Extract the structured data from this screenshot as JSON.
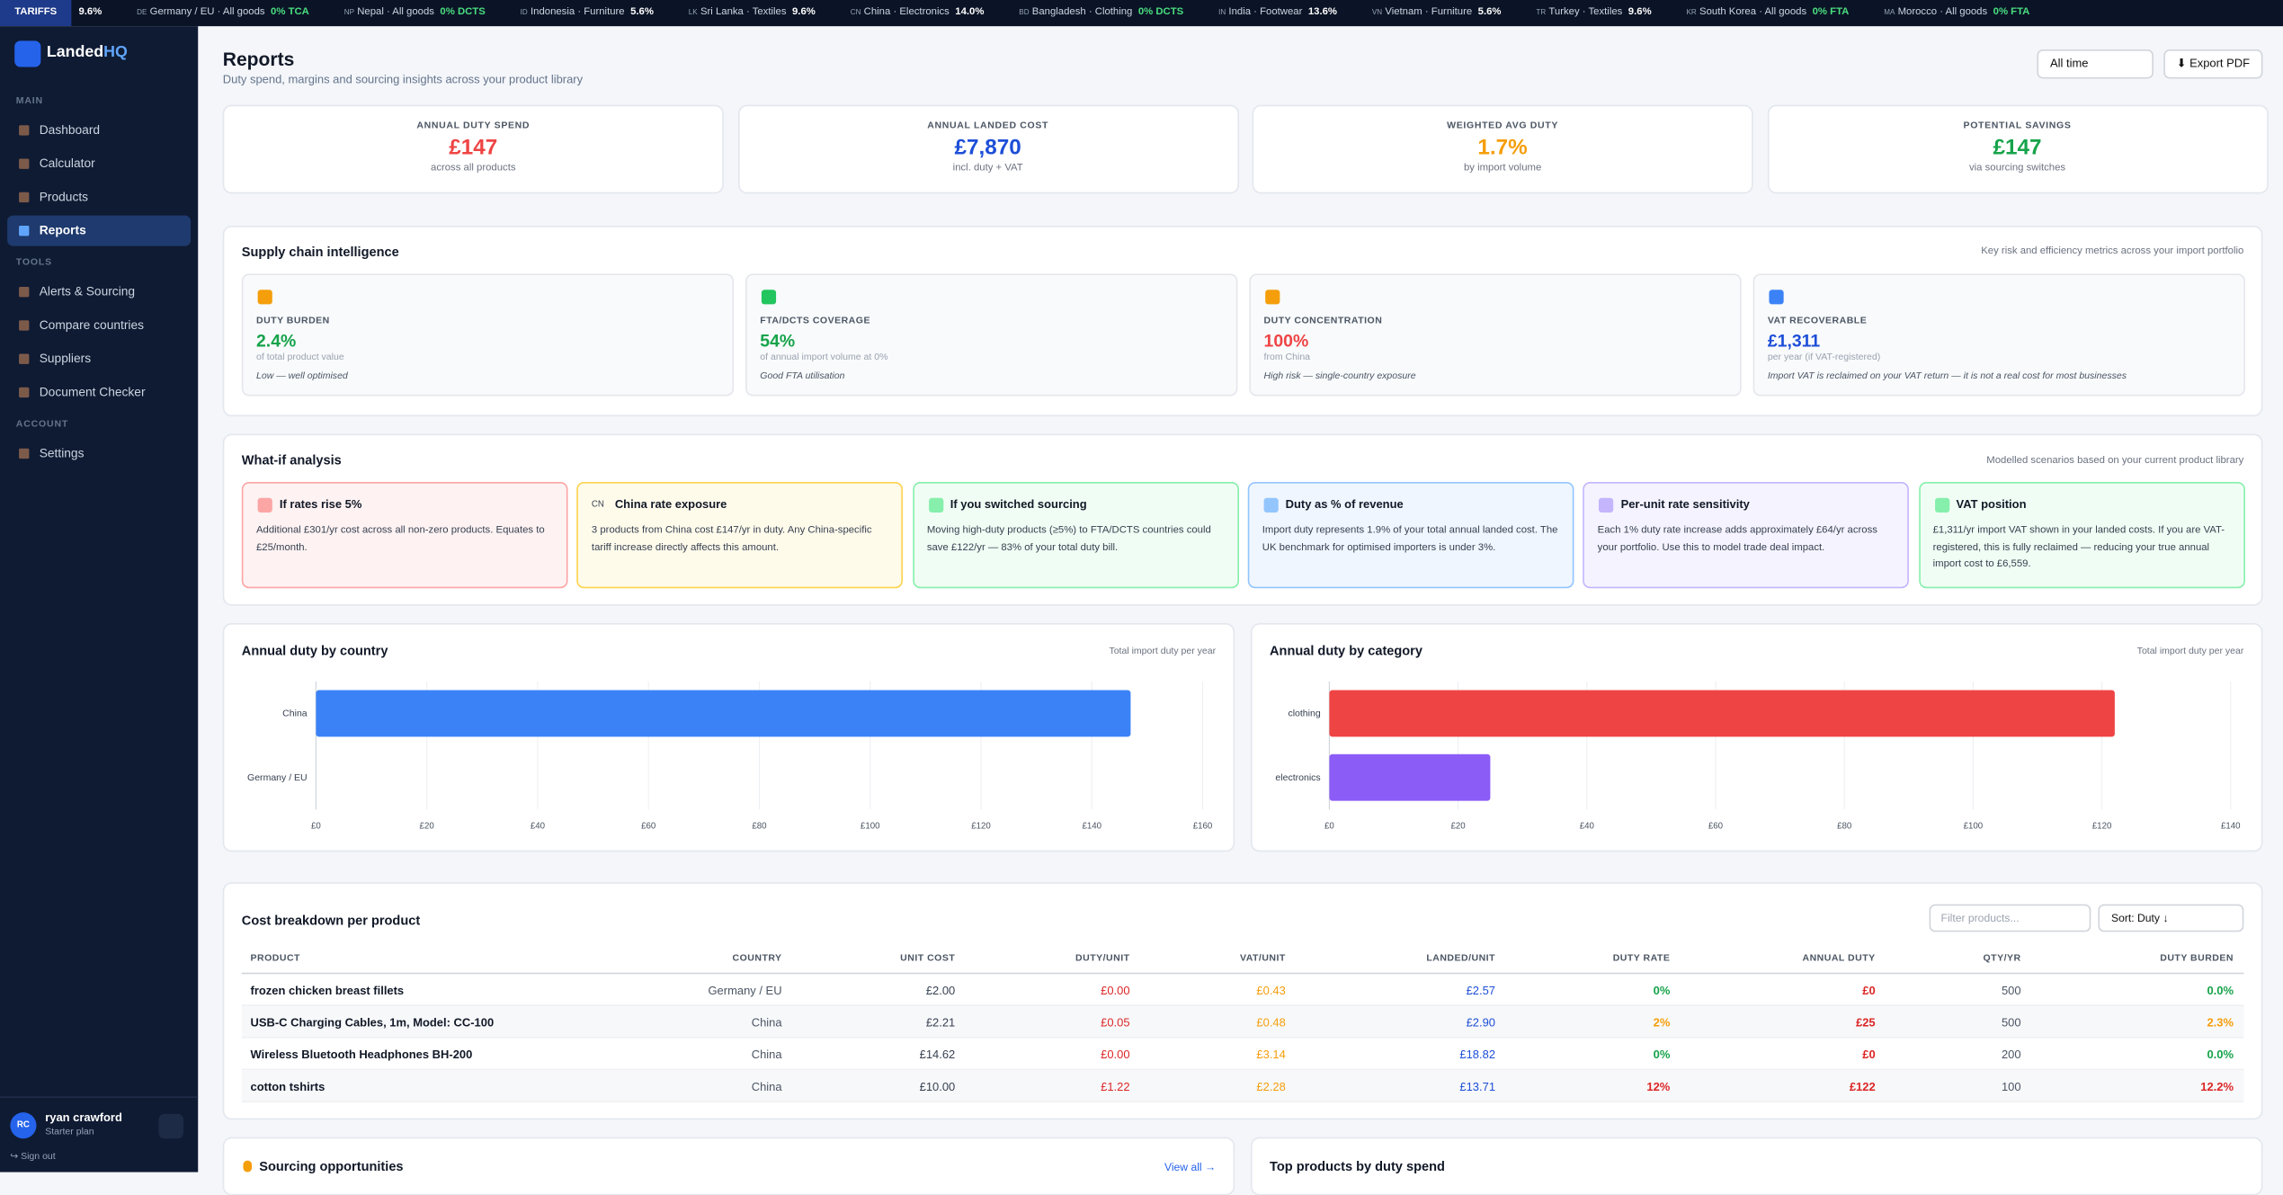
{
  "ticker": {
    "label": "TARIFFS",
    "items": [
      {
        "rate": "9.6%",
        "color": "#ffffff"
      },
      {
        "flag": "DE",
        "name": "Germany / EU · All goods",
        "rate": "0% TCA",
        "color": "#4ade80"
      },
      {
        "flag": "NP",
        "name": "Nepal · All goods",
        "rate": "0% DCTS",
        "color": "#4ade80"
      },
      {
        "flag": "ID",
        "name": "Indonesia · Furniture",
        "rate": "5.6%",
        "color": "#ffffff"
      },
      {
        "flag": "LK",
        "name": "Sri Lanka · Textiles",
        "rate": "9.6%",
        "color": "#ffffff"
      },
      {
        "flag": "CN",
        "name": "China · Electronics",
        "rate": "14.0%",
        "color": "#ffffff"
      },
      {
        "flag": "BD",
        "name": "Bangladesh · Clothing",
        "rate": "0% DCTS",
        "color": "#4ade80"
      },
      {
        "flag": "IN",
        "name": "India · Footwear",
        "rate": "13.6%",
        "color": "#ffffff"
      },
      {
        "flag": "VN",
        "name": "Vietnam · Furniture",
        "rate": "5.6%",
        "color": "#ffffff"
      },
      {
        "flag": "TR",
        "name": "Turkey · Textiles",
        "rate": "9.6%",
        "color": "#ffffff"
      },
      {
        "flag": "KR",
        "name": "South Korea · All goods",
        "rate": "0% FTA",
        "color": "#4ade80"
      },
      {
        "flag": "MA",
        "name": "Morocco · All goods",
        "rate": "0% FTA",
        "color": "#4ade80"
      }
    ]
  },
  "sidebar": {
    "logo": [
      "Landed",
      "HQ"
    ],
    "sections": [
      {
        "title": "MAIN",
        "items": [
          "Dashboard",
          "Calculator",
          "Products",
          "Reports"
        ]
      },
      {
        "title": "TOOLS",
        "items": [
          "Alerts & Sourcing",
          "Compare countries",
          "Suppliers",
          "Document Checker"
        ]
      },
      {
        "title": "ACCOUNT",
        "items": [
          "Settings"
        ]
      }
    ],
    "active": "Reports",
    "user": {
      "initials": "RC",
      "name": "ryan crawford",
      "plan": "Starter plan"
    },
    "signout": "↪ Sign out"
  },
  "header": {
    "title": "Reports",
    "subtitle": "Duty spend, margins and sourcing insights across your product library",
    "period": "All time",
    "export": "⬇ Export PDF"
  },
  "kpis": [
    {
      "label": "ANNUAL DUTY SPEND",
      "value": "£147",
      "note": "across all products",
      "color": "#ef4444"
    },
    {
      "label": "ANNUAL LANDED COST",
      "value": "£7,870",
      "note": "incl. duty + VAT",
      "color": "#1d4ed8"
    },
    {
      "label": "WEIGHTED AVG DUTY",
      "value": "1.7%",
      "note": "by import volume",
      "color": "#f59e0b"
    },
    {
      "label": "POTENTIAL SAVINGS",
      "value": "£147",
      "note": "via sourcing switches",
      "color": "#16a34a"
    }
  ],
  "intel": {
    "title": "Supply chain intelligence",
    "note": "Key risk and efficiency metrics across your import portfolio",
    "cards": [
      {
        "label": "DUTY BURDEN",
        "value": "2.4%",
        "sub": "of total product value",
        "comment": "Low — well optimised",
        "color": "#16a34a",
        "icon": "#f59e0b"
      },
      {
        "label": "FTA/DCTS COVERAGE",
        "value": "54%",
        "sub": "of annual import volume at 0%",
        "comment": "Good FTA utilisation",
        "color": "#16a34a",
        "icon": "#22c55e"
      },
      {
        "label": "DUTY CONCENTRATION",
        "value": "100%",
        "sub": "from China",
        "comment": "High risk — single-country exposure",
        "color": "#ef4444",
        "icon": "#f59e0b"
      },
      {
        "label": "VAT RECOVERABLE",
        "value": "£1,311",
        "sub": "per year (if VAT-registered)",
        "comment": "Import VAT is reclaimed on your VAT return — it is not a real cost for most businesses",
        "color": "#1d4ed8",
        "icon": "#3b82f6"
      }
    ]
  },
  "whatif": {
    "title": "What-if analysis",
    "note": "Modelled scenarios based on your current product library",
    "cards": [
      {
        "title": "If rates rise 5%",
        "text": "Additional £301/yr cost across all non-zero products. Equates to £25/month.",
        "bg": "#fef2f2",
        "border": "#fca5a5"
      },
      {
        "icon": "CN",
        "title": "China rate exposure",
        "text": "3 products from China cost £147/yr in duty. Any China-specific tariff increase directly affects this amount.",
        "bg": "#fffbeb",
        "border": "#fcd34d"
      },
      {
        "title": "If you switched sourcing",
        "text": "Moving high-duty products (≥5%) to FTA/DCTS countries could save £122/yr — 83% of your total duty bill.",
        "bg": "#f0fdf4",
        "border": "#86efac"
      },
      {
        "title": "Duty as % of revenue",
        "text": "Import duty represents 1.9% of your total annual landed cost. The UK benchmark for optimised importers is under 3%.",
        "bg": "#eff6ff",
        "border": "#93c5fd"
      },
      {
        "title": "Per-unit rate sensitivity",
        "text": "Each 1% duty rate increase adds approximately £64/yr across your portfolio. Use this to model trade deal impact.",
        "bg": "#f5f3ff",
        "border": "#c4b5fd"
      },
      {
        "title": "VAT position",
        "text": "£1,311/yr import VAT shown in your landed costs. If you are VAT-registered, this is fully reclaimed — reducing your true annual import cost to £6,559.",
        "bg": "#f0fdf4",
        "border": "#86efac"
      }
    ]
  },
  "chart_data": [
    {
      "type": "hbar",
      "title": "Annual duty by country",
      "subtitle": "Total import duty per year",
      "categories": [
        "China",
        "Germany / EU"
      ],
      "values": [
        147,
        0
      ],
      "color": "#3b82f6",
      "xlim": [
        0,
        160
      ],
      "xticks": [
        {
          "value": 0,
          "label": "£0"
        },
        {
          "value": 20,
          "label": "£20"
        },
        {
          "value": 40,
          "label": "£40"
        },
        {
          "value": 60,
          "label": "£60"
        },
        {
          "value": 80,
          "label": "£80"
        },
        {
          "value": 100,
          "label": "£100"
        },
        {
          "value": 120,
          "label": "£120"
        },
        {
          "value": 140,
          "label": "£140"
        },
        {
          "value": 160,
          "label": "£160"
        }
      ],
      "grid": true
    },
    {
      "type": "hbar",
      "title": "Annual duty by category",
      "subtitle": "Total import duty per year",
      "categories": [
        "clothing",
        "electronics"
      ],
      "values": [
        122,
        25
      ],
      "colors": [
        "#ef4444",
        "#8b5cf6"
      ],
      "xlim": [
        0,
        140
      ],
      "xticks": [
        {
          "value": 0,
          "label": "£0"
        },
        {
          "value": 20,
          "label": "£20"
        },
        {
          "value": 40,
          "label": "£40"
        },
        {
          "value": 60,
          "label": "£60"
        },
        {
          "value": 80,
          "label": "£80"
        },
        {
          "value": 100,
          "label": "£100"
        },
        {
          "value": 120,
          "label": "£120"
        },
        {
          "value": 140,
          "label": "£140"
        }
      ],
      "grid": true
    }
  ],
  "table": {
    "title": "Cost breakdown per product",
    "filter": "Filter products...",
    "sort": "Sort: Duty ↓",
    "columns": [
      "PRODUCT",
      "COUNTRY",
      "UNIT COST",
      "DUTY/UNIT",
      "VAT/UNIT",
      "LANDED/UNIT",
      "DUTY RATE",
      "ANNUAL DUTY",
      "QTY/YR",
      "DUTY BURDEN"
    ],
    "column_colors": [
      "#111827",
      "#4b5563",
      "#374151",
      "#dc2626",
      "#f59e0b",
      "#1d4ed8",
      "#16a34a",
      "#dc2626",
      "#4b5563",
      "#16a34a"
    ],
    "rows": [
      [
        "frozen chicken breast fillets",
        "Germany / EU",
        "£2.00",
        "£0.00",
        "£0.43",
        "£2.57",
        "0%",
        "£0",
        "500",
        "0.0%"
      ],
      [
        "USB-C Charging Cables, 1m, Model: CC-100",
        "China",
        "£2.21",
        "£0.05",
        "£0.48",
        "£2.90",
        "2%",
        "£25",
        "500",
        "2.3%"
      ],
      [
        "Wireless Bluetooth Headphones BH-200",
        "China",
        "£14.62",
        "£0.00",
        "£3.14",
        "£18.82",
        "0%",
        "£0",
        "200",
        "0.0%"
      ],
      [
        "cotton tshirts",
        "China",
        "£10.00",
        "£1.22",
        "£2.28",
        "£13.71",
        "12%",
        "£122",
        "100",
        "12.2%"
      ]
    ],
    "rate_colors": [
      "#16a34a",
      "#f59e0b",
      "#16a34a",
      "#dc2626"
    ]
  },
  "bottom": {
    "left": "Sourcing opportunities",
    "link": "View all →",
    "right": "Top products by duty spend"
  }
}
